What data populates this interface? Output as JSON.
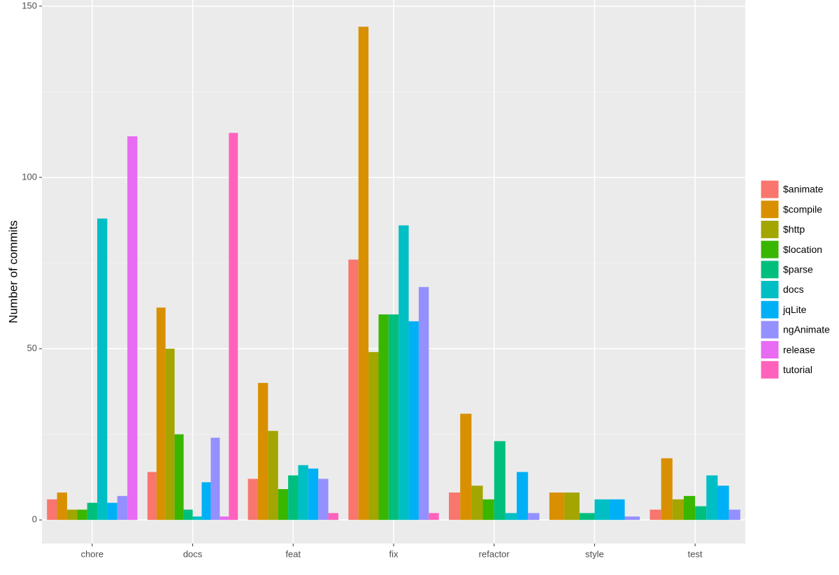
{
  "chart_data": {
    "type": "bar",
    "y_label": "Number of commits",
    "categories": [
      "chore",
      "docs",
      "feat",
      "fix",
      "refactor",
      "style",
      "test"
    ],
    "series": [
      {
        "name": "$animate",
        "color": "#F8766D",
        "values": [
          6,
          14,
          12,
          76,
          8,
          null,
          3
        ]
      },
      {
        "name": "$compile",
        "color": "#D89000",
        "values": [
          8,
          62,
          40,
          144,
          31,
          8,
          18
        ]
      },
      {
        "name": "$http",
        "color": "#A3A500",
        "values": [
          3,
          50,
          26,
          49,
          10,
          8,
          6
        ]
      },
      {
        "name": "$location",
        "color": "#39B600",
        "values": [
          3,
          25,
          9,
          60,
          6,
          null,
          7
        ]
      },
      {
        "name": "$parse",
        "color": "#00BF7D",
        "values": [
          5,
          3,
          13,
          60,
          23,
          2,
          4
        ]
      },
      {
        "name": "docs",
        "color": "#00BFC4",
        "values": [
          88,
          1,
          16,
          86,
          2,
          6,
          13
        ]
      },
      {
        "name": "jqLite",
        "color": "#00B0F6",
        "values": [
          5,
          11,
          15,
          58,
          14,
          6,
          10
        ]
      },
      {
        "name": "ngAnimate",
        "color": "#9590FF",
        "values": [
          7,
          24,
          12,
          68,
          2,
          1,
          3
        ]
      },
      {
        "name": "release",
        "color": "#E76BF3",
        "values": [
          112,
          1,
          null,
          null,
          null,
          null,
          null
        ]
      },
      {
        "name": "tutorial",
        "color": "#FF62BC",
        "values": [
          null,
          113,
          2,
          2,
          null,
          null,
          null
        ]
      }
    ],
    "ylim": [
      -6.9,
      151.8
    ],
    "yticks": [
      0,
      50,
      100,
      150
    ],
    "minor_yticks": [
      25,
      75,
      125
    ],
    "grid": true,
    "legend": "right"
  }
}
